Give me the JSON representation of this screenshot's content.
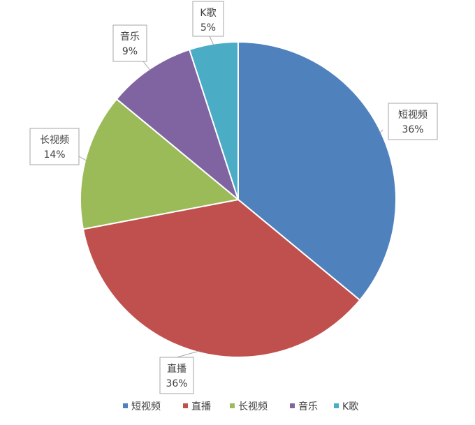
{
  "chart_data": {
    "type": "pie",
    "title": "",
    "categories": [
      "短视频",
      "直播",
      "长视频",
      "音乐",
      "K歌"
    ],
    "values": [
      36,
      36,
      14,
      9,
      5
    ],
    "labels": [
      "36%",
      "36%",
      "14%",
      "9%",
      "5%"
    ],
    "colors": [
      "#4f81bd",
      "#c0504d",
      "#9bbb59",
      "#8064a2",
      "#4bacc6"
    ],
    "legend": {
      "position": "bottom",
      "entries": [
        "短视频",
        "直播",
        "长视频",
        "音乐",
        "K歌"
      ]
    }
  }
}
